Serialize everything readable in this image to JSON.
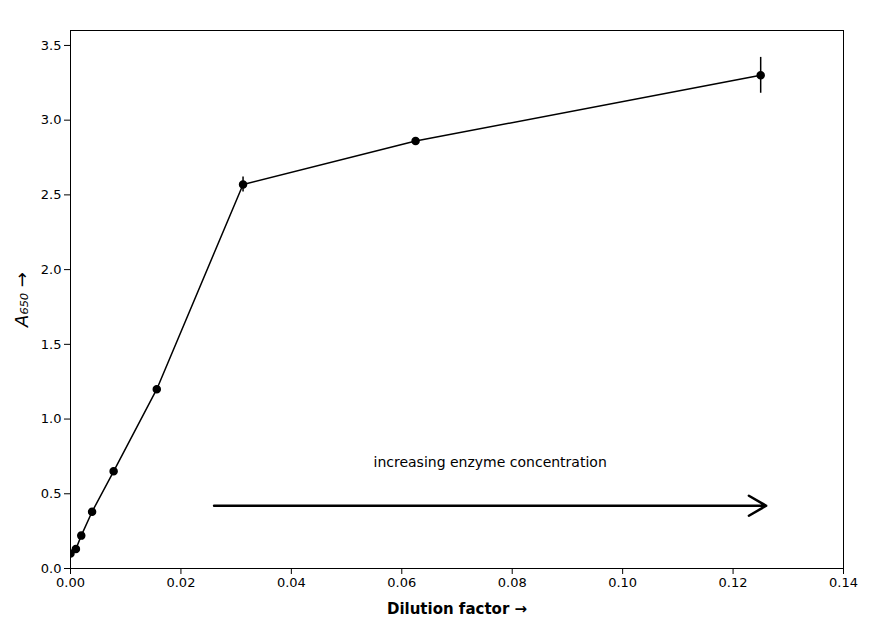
{
  "chart_data": {
    "type": "line",
    "x": [
      0.0,
      0.00098,
      0.00195,
      0.00391,
      0.00781,
      0.015625,
      0.03125,
      0.0625,
      0.125
    ],
    "values": [
      0.1,
      0.13,
      0.22,
      0.38,
      0.65,
      1.2,
      2.57,
      2.86,
      3.3
    ],
    "yerr": [
      0.0,
      0.0,
      0.0,
      0.0,
      0.0,
      0.0,
      0.05,
      0.0,
      0.12
    ],
    "xlabel": "Dilution factor",
    "ylabel": "A₆₅₀",
    "xlim": [
      0.0,
      0.14
    ],
    "ylim": [
      0.0,
      3.6
    ],
    "xticks": [
      {
        "value": 0.0,
        "label": "0.00"
      },
      0.02,
      0.04,
      0.06,
      0.08,
      {
        "value": 0.1,
        "label": "0.10"
      },
      0.12,
      0.14
    ],
    "yticks": [
      {
        "value": 0.0,
        "label": "0.0"
      },
      0.5,
      {
        "value": 1.0,
        "label": "1.0"
      },
      1.5,
      {
        "value": 2.0,
        "label": "2.0"
      },
      2.5,
      {
        "value": 3.0,
        "label": "3.0"
      },
      3.5
    ],
    "annotations": [
      {
        "text": "increasing enzyme concentration",
        "x": 0.076,
        "y": 0.68
      }
    ],
    "arrows": [
      {
        "x1": 0.026,
        "x2": 0.126,
        "y": 0.42
      }
    ],
    "color": "#000000",
    "marker": "circle",
    "grid": false
  }
}
